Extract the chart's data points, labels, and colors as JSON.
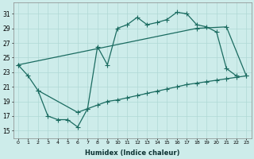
{
  "xlabel": "Humidex (Indice chaleur)",
  "background_color": "#cdecea",
  "grid_color": "#b0d8d5",
  "line_color": "#1a6b60",
  "xlim": [
    -0.5,
    23.5
  ],
  "ylim": [
    14,
    32.5
  ],
  "xticks": [
    0,
    1,
    2,
    3,
    4,
    5,
    6,
    7,
    8,
    9,
    10,
    11,
    12,
    13,
    14,
    15,
    16,
    17,
    18,
    19,
    20,
    21,
    22,
    23
  ],
  "yticks": [
    15,
    17,
    19,
    21,
    23,
    25,
    27,
    29,
    31
  ],
  "curve1_x": [
    0,
    1,
    2,
    3,
    4,
    5,
    6,
    7,
    8,
    9,
    10,
    11,
    12,
    13,
    14,
    15,
    16,
    17,
    18,
    19,
    20,
    21,
    22
  ],
  "curve1_y": [
    24.0,
    22.5,
    20.5,
    17.0,
    16.5,
    16.5,
    15.5,
    18.0,
    26.5,
    24.0,
    29.0,
    29.5,
    30.5,
    29.5,
    29.8,
    30.2,
    31.2,
    31.0,
    29.5,
    29.2,
    28.5,
    23.5,
    22.5
  ],
  "curve2_x": [
    0,
    18,
    21,
    23
  ],
  "curve2_y": [
    24.0,
    29.0,
    29.2,
    22.5
  ],
  "curve3_x": [
    2,
    6,
    7,
    8,
    9,
    10,
    11,
    12,
    13,
    14,
    15,
    16,
    17,
    18,
    19,
    20,
    21,
    22,
    23
  ],
  "curve3_y": [
    20.5,
    17.5,
    18.0,
    18.5,
    19.0,
    19.2,
    19.5,
    19.8,
    20.1,
    20.4,
    20.7,
    21.0,
    21.3,
    21.5,
    21.7,
    21.9,
    22.1,
    22.3,
    22.5
  ]
}
